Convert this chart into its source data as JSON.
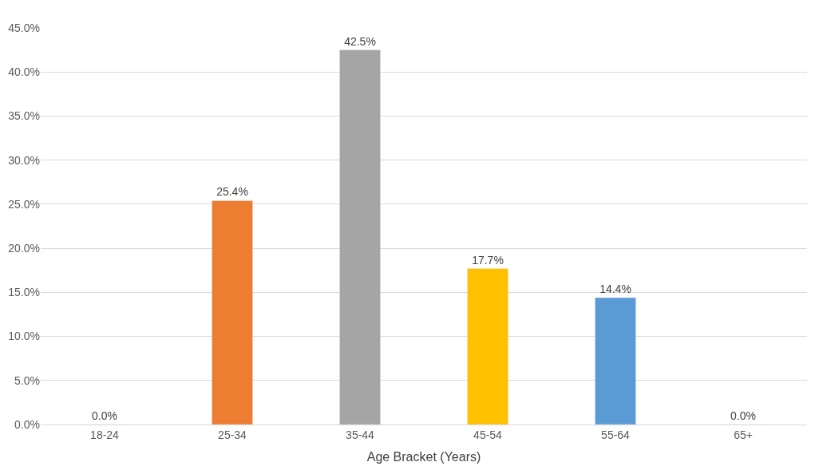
{
  "chart_data": {
    "type": "bar",
    "xlabel": "Age Bracket (Years)",
    "categories": [
      "18-24",
      "25-34",
      "35-44",
      "45-54",
      "55-64",
      "65+"
    ],
    "values": [
      0.0,
      25.4,
      42.5,
      17.7,
      14.4,
      0.0
    ],
    "colors": [
      null,
      "#ed7d31",
      "#a5a5a5",
      "#ffc000",
      "#5b9bd5",
      null
    ],
    "value_labels": [
      "0.0%",
      "25.4%",
      "42.5%",
      "17.7%",
      "14.4%",
      "0.0%"
    ],
    "ylim": [
      0,
      45
    ],
    "yticks": [
      {
        "value": 0,
        "label": "0.0%"
      },
      {
        "value": 5,
        "label": "5.0%"
      },
      {
        "value": 10,
        "label": "10.0%"
      },
      {
        "value": 15,
        "label": "15.0%"
      },
      {
        "value": 20,
        "label": "20.0%"
      },
      {
        "value": 25,
        "label": "25.0%"
      },
      {
        "value": 30,
        "label": "30.0%"
      },
      {
        "value": 35,
        "label": "35.0%"
      },
      {
        "value": 40,
        "label": "40.0%"
      },
      {
        "value": 45,
        "label": "45.0%"
      }
    ],
    "grid": "y"
  }
}
